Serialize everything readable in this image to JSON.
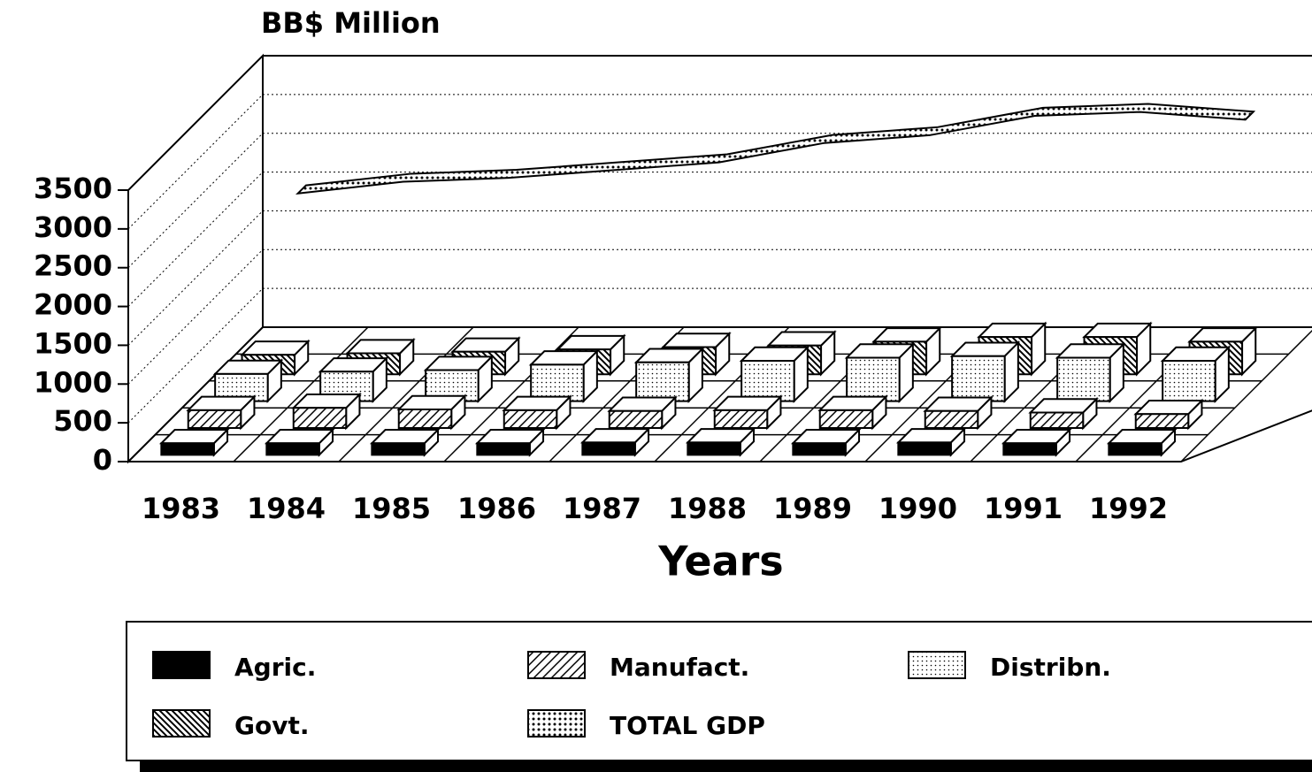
{
  "chart_data": {
    "type": "bar3d",
    "y_label": "BB$ Million",
    "x_label": "Years",
    "categories": [
      "1983",
      "1984",
      "1985",
      "1986",
      "1987",
      "1988",
      "1989",
      "1990",
      "1991",
      "1992"
    ],
    "series": [
      {
        "name": "Agric.",
        "color": "#000000",
        "pattern": "solid",
        "values": [
          150,
          150,
          150,
          150,
          160,
          160,
          150,
          160,
          150,
          150
        ]
      },
      {
        "name": "Manufact.",
        "color": "#000000",
        "pattern": "hatch",
        "values": [
          230,
          260,
          240,
          230,
          220,
          230,
          230,
          220,
          200,
          180
        ]
      },
      {
        "name": "Distribn.",
        "color": "#000000",
        "pattern": "dots",
        "values": [
          350,
          380,
          400,
          470,
          500,
          520,
          560,
          580,
          560,
          520
        ]
      },
      {
        "name": "Govt.",
        "color": "#000000",
        "pattern": "backhatch",
        "values": [
          250,
          270,
          290,
          320,
          350,
          370,
          420,
          480,
          480,
          420
        ]
      },
      {
        "name": "TOTAL GDP",
        "color": "#000000",
        "pattern": "densedots",
        "kind": "ribbon",
        "values": [
          1950,
          2100,
          2150,
          2250,
          2350,
          2600,
          2700,
          2950,
          3000,
          2900
        ]
      }
    ],
    "ylim": [
      0,
      3500
    ],
    "yticks": [
      0,
      500,
      1000,
      1500,
      2000,
      2500,
      3000,
      3500
    ],
    "grid": true
  }
}
